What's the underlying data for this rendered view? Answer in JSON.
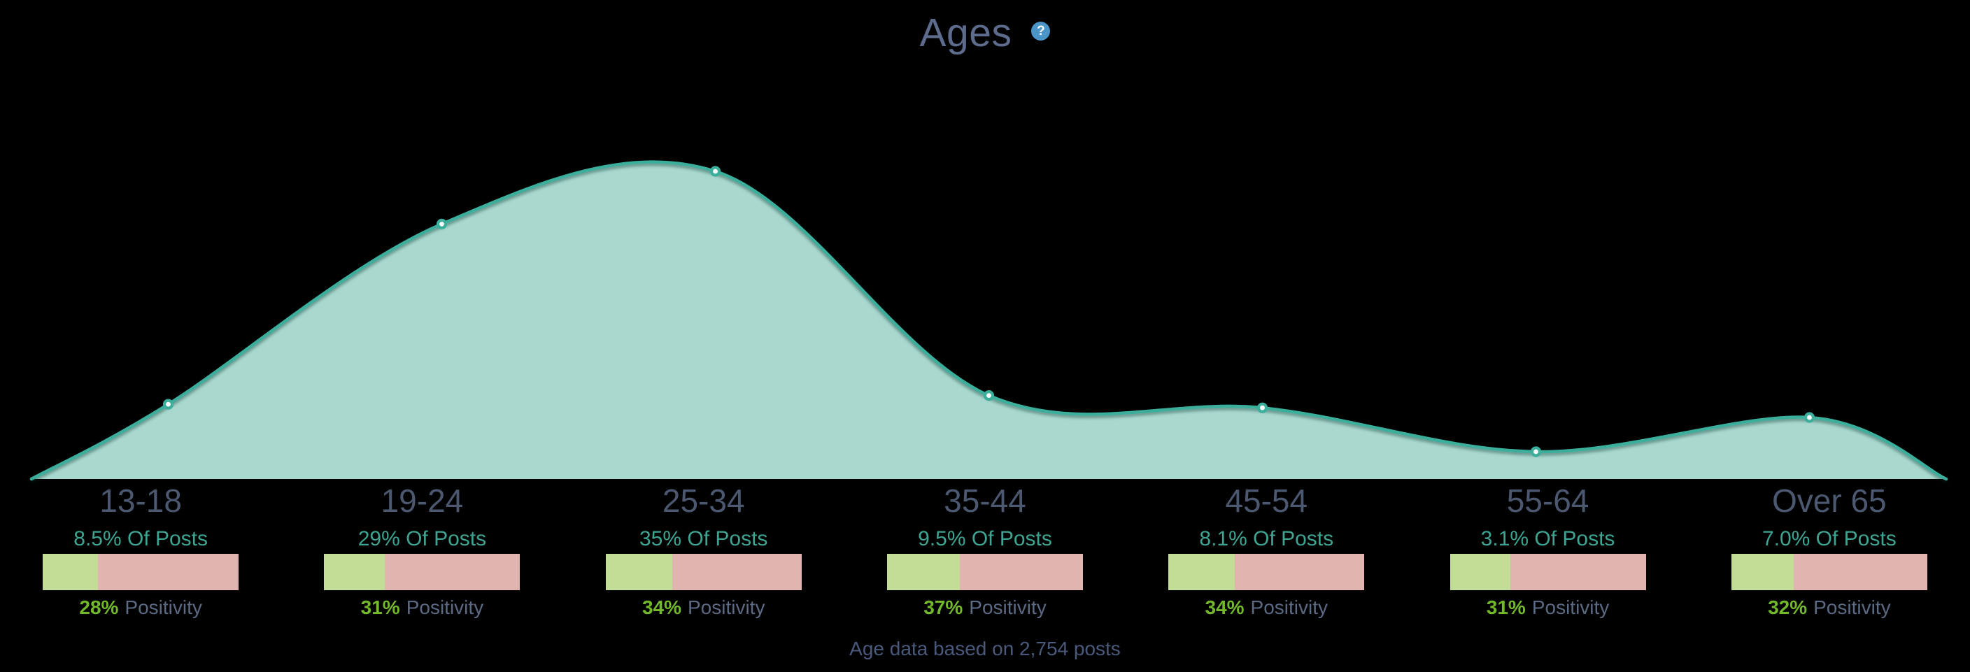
{
  "header": {
    "title": "Ages",
    "help_icon": "?"
  },
  "chart_data": {
    "type": "area",
    "title": "Ages",
    "categories": [
      "13-18",
      "19-24",
      "25-34",
      "35-44",
      "45-54",
      "55-64",
      "Over 65"
    ],
    "series": [
      {
        "name": "Of Posts %",
        "values": [
          8.5,
          29,
          35,
          9.5,
          8.1,
          3.1,
          7.0
        ]
      },
      {
        "name": "Positivity %",
        "values": [
          28,
          31,
          34,
          37,
          34,
          31,
          32
        ]
      }
    ],
    "ylim": [
      0,
      35
    ],
    "grid": false,
    "legend_position": "none",
    "annotation": "Age data based on 2,754 posts",
    "colors": {
      "background": "#000000",
      "area_fill": "#a8d8ce",
      "area_stroke": "#3cae9c",
      "marker_fill": "#ffffff",
      "bar_positive": "#c2dd95",
      "bar_negative": "#e0b5b0",
      "positivity_accent": "#72b82a",
      "posts_text": "#3ea492",
      "label_text": "#4b5870"
    }
  },
  "columns": [
    {
      "age": "13-18",
      "posts_label": "8.5% Of Posts",
      "positivity_pct": "28%",
      "positivity_word": "Positivity",
      "positivity_value": 28
    },
    {
      "age": "19-24",
      "posts_label": "29% Of Posts",
      "positivity_pct": "31%",
      "positivity_word": "Positivity",
      "positivity_value": 31
    },
    {
      "age": "25-34",
      "posts_label": "35% Of Posts",
      "positivity_pct": "34%",
      "positivity_word": "Positivity",
      "positivity_value": 34
    },
    {
      "age": "35-44",
      "posts_label": "9.5% Of Posts",
      "positivity_pct": "37%",
      "positivity_word": "Positivity",
      "positivity_value": 37
    },
    {
      "age": "45-54",
      "posts_label": "8.1% Of Posts",
      "positivity_pct": "34%",
      "positivity_word": "Positivity",
      "positivity_value": 34
    },
    {
      "age": "55-64",
      "posts_label": "3.1% Of Posts",
      "positivity_pct": "31%",
      "positivity_word": "Positivity",
      "positivity_value": 31
    },
    {
      "age": "Over 65",
      "posts_label": "7.0% Of Posts",
      "positivity_pct": "32%",
      "positivity_word": "Positivity",
      "positivity_value": 32
    }
  ],
  "footer": {
    "note": "Age data based on 2,754 posts"
  }
}
